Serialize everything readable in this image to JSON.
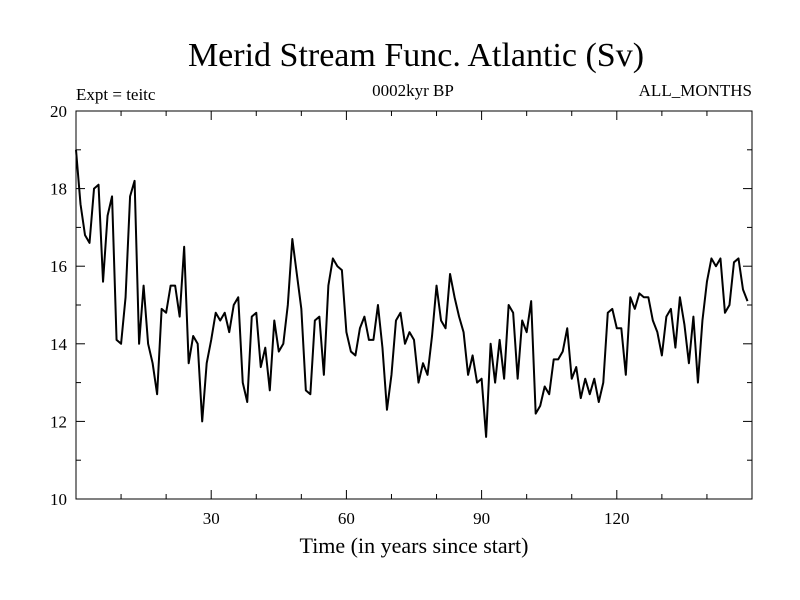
{
  "chart_data": {
    "type": "line",
    "title": "Merid Stream Func. Atlantic (Sv)",
    "left_label": "Expt = teitc",
    "center_label": "0002kyr BP",
    "right_label": "ALL_MONTHS",
    "xlabel": "Time (in years since start)",
    "ylabel": "",
    "xlim": [
      0,
      150
    ],
    "ylim": [
      10,
      20
    ],
    "x_ticks": [
      30,
      60,
      90,
      120
    ],
    "x_minor_step": 10,
    "y_ticks": [
      10,
      12,
      14,
      16,
      18,
      20
    ],
    "y_minor_step": 1,
    "grid": false,
    "series": [
      {
        "name": "Merid Stream Func. Atlantic",
        "color": "#000000",
        "x_start": 0,
        "x_step": 1,
        "values": [
          19.0,
          17.6,
          16.8,
          16.6,
          18.0,
          18.1,
          15.6,
          17.3,
          17.8,
          14.1,
          14.0,
          15.2,
          17.8,
          18.2,
          14.0,
          15.5,
          14.0,
          13.5,
          12.7,
          14.9,
          14.8,
          15.5,
          15.5,
          14.7,
          16.5,
          13.5,
          14.2,
          14.0,
          12.0,
          13.5,
          14.1,
          14.8,
          14.6,
          14.8,
          14.3,
          15.0,
          15.2,
          13.0,
          12.5,
          14.7,
          14.8,
          13.4,
          13.9,
          12.8,
          14.6,
          13.8,
          14.0,
          15.0,
          16.7,
          15.8,
          14.9,
          12.8,
          12.7,
          14.6,
          14.7,
          13.2,
          15.5,
          16.2,
          16.0,
          15.9,
          14.3,
          13.8,
          13.7,
          14.4,
          14.7,
          14.1,
          14.1,
          15.0,
          13.9,
          12.3,
          13.2,
          14.6,
          14.8,
          14.0,
          14.3,
          14.1,
          13.0,
          13.5,
          13.2,
          14.2,
          15.5,
          14.6,
          14.4,
          15.8,
          15.2,
          14.7,
          14.3,
          13.2,
          13.7,
          13.0,
          13.1,
          11.6,
          14.0,
          13.0,
          14.1,
          13.1,
          15.0,
          14.8,
          13.1,
          14.6,
          14.3,
          15.1,
          12.2,
          12.4,
          12.9,
          12.7,
          13.6,
          13.6,
          13.8,
          14.4,
          13.1,
          13.4,
          12.6,
          13.1,
          12.7,
          13.1,
          12.5,
          13.0,
          14.8,
          14.9,
          14.4,
          14.4,
          13.2,
          15.2,
          14.9,
          15.3,
          15.2,
          15.2,
          14.6,
          14.3,
          13.7,
          14.7,
          14.9,
          13.9,
          15.2,
          14.5,
          13.5,
          14.7,
          13.0,
          14.6,
          15.6,
          16.2,
          16.0,
          16.2,
          14.8,
          15.0,
          16.1,
          16.2,
          15.4,
          15.1
        ]
      }
    ]
  }
}
